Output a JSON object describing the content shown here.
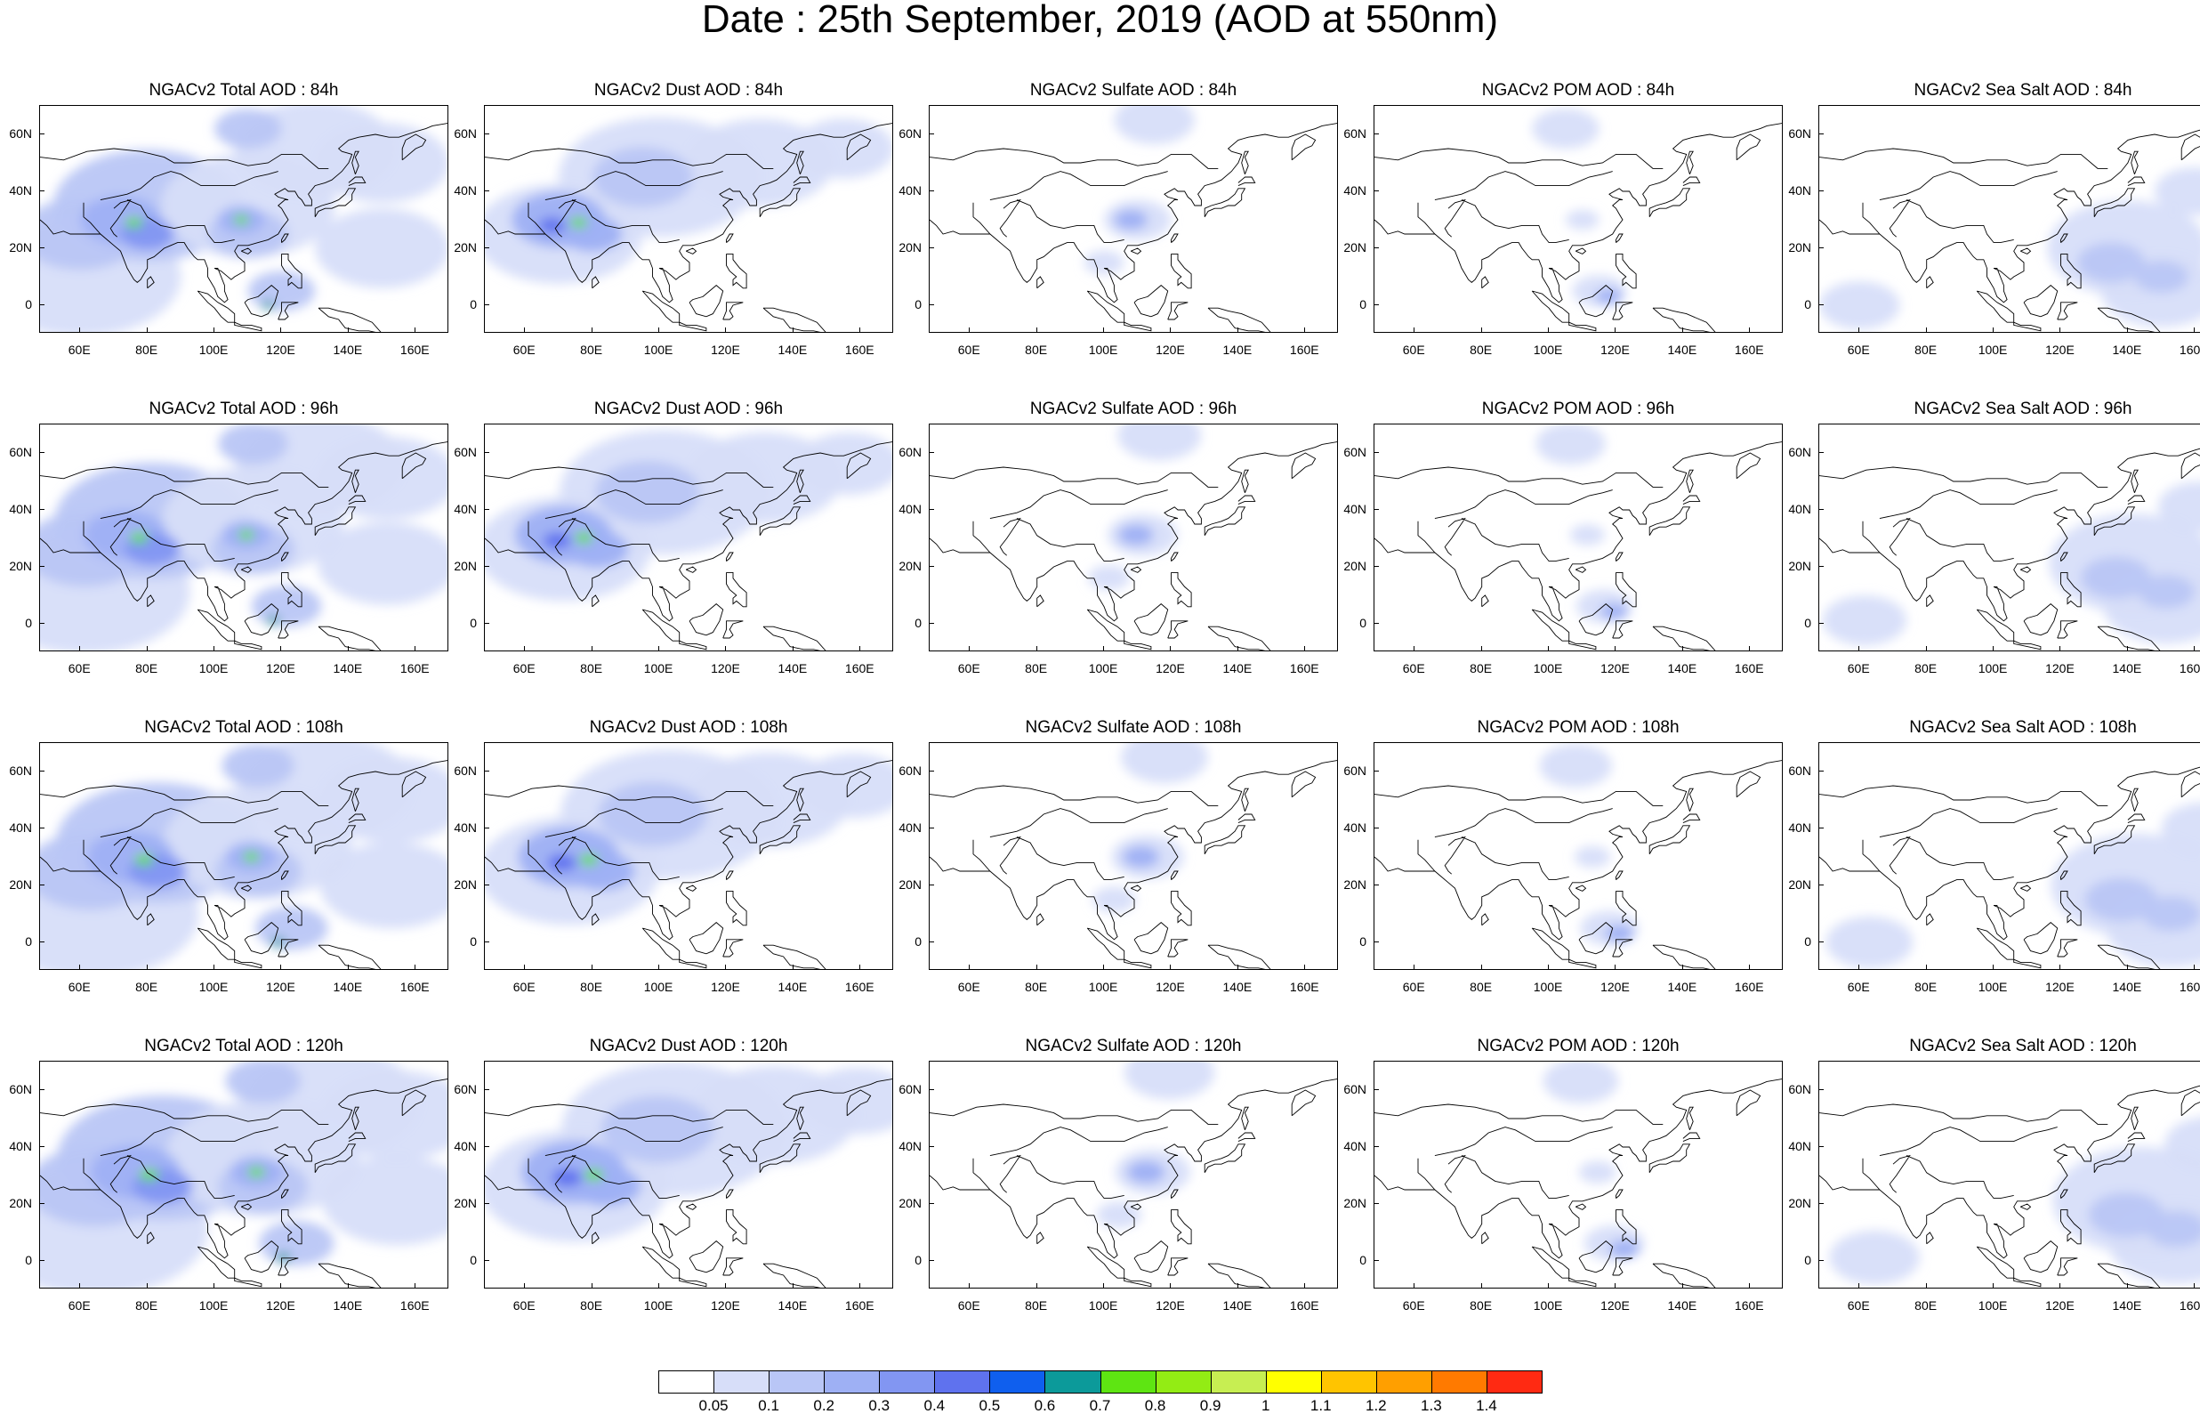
{
  "title": "Date : 25th September, 2019 (AOD at 550nm)",
  "lat_ticks": [
    "60N",
    "40N",
    "20N",
    "0"
  ],
  "lon_ticks": [
    "60E",
    "80E",
    "100E",
    "120E",
    "140E",
    "160E"
  ],
  "columns": [
    "total",
    "dust",
    "sulfate",
    "pom",
    "seasalt"
  ],
  "rows": [
    "84h",
    "96h",
    "108h",
    "120h"
  ],
  "panels": [
    {
      "row": 0,
      "col": 0,
      "title": "NGACv2 Total AOD : 84h"
    },
    {
      "row": 0,
      "col": 1,
      "title": "NGACv2 Dust AOD : 84h"
    },
    {
      "row": 0,
      "col": 2,
      "title": "NGACv2 Sulfate AOD : 84h"
    },
    {
      "row": 0,
      "col": 3,
      "title": "NGACv2 POM AOD : 84h"
    },
    {
      "row": 0,
      "col": 4,
      "title": "NGACv2 Sea Salt AOD : 84h"
    },
    {
      "row": 1,
      "col": 0,
      "title": "NGACv2 Total AOD : 96h"
    },
    {
      "row": 1,
      "col": 1,
      "title": "NGACv2 Dust AOD : 96h"
    },
    {
      "row": 1,
      "col": 2,
      "title": "NGACv2 Sulfate AOD : 96h"
    },
    {
      "row": 1,
      "col": 3,
      "title": "NGACv2 POM AOD : 96h"
    },
    {
      "row": 1,
      "col": 4,
      "title": "NGACv2 Sea Salt AOD : 96h"
    },
    {
      "row": 2,
      "col": 0,
      "title": "NGACv2 Total AOD : 108h"
    },
    {
      "row": 2,
      "col": 1,
      "title": "NGACv2 Dust AOD : 108h"
    },
    {
      "row": 2,
      "col": 2,
      "title": "NGACv2 Sulfate AOD : 108h"
    },
    {
      "row": 2,
      "col": 3,
      "title": "NGACv2 POM AOD : 108h"
    },
    {
      "row": 2,
      "col": 4,
      "title": "NGACv2 Sea Salt AOD : 108h"
    },
    {
      "row": 3,
      "col": 0,
      "title": "NGACv2 Total AOD : 120h"
    },
    {
      "row": 3,
      "col": 1,
      "title": "NGACv2 Dust AOD : 120h"
    },
    {
      "row": 3,
      "col": 2,
      "title": "NGACv2 Sulfate AOD : 120h"
    },
    {
      "row": 3,
      "col": 3,
      "title": "NGACv2 POM AOD : 120h"
    },
    {
      "row": 3,
      "col": 4,
      "title": "NGACv2 Sea Salt  AOD : 120h"
    }
  ],
  "colorbar": {
    "labels": [
      "0.05",
      "0.1",
      "0.2",
      "0.3",
      "0.4",
      "0.5",
      "0.6",
      "0.7",
      "0.8",
      "0.9",
      "1",
      "1.1",
      "1.2",
      "1.3",
      "1.4"
    ],
    "colors": [
      "#ffffff",
      "#d7def9",
      "#b9c6f6",
      "#9eb0f4",
      "#8296f2",
      "#5f72ee",
      "#0f5fee",
      "#0c9a9a",
      "#5ee512",
      "#93ec14",
      "#c7ee52",
      "#ffff00",
      "#ffc400",
      "#ff9f00",
      "#ff7a00",
      "#ff2a12"
    ]
  }
}
